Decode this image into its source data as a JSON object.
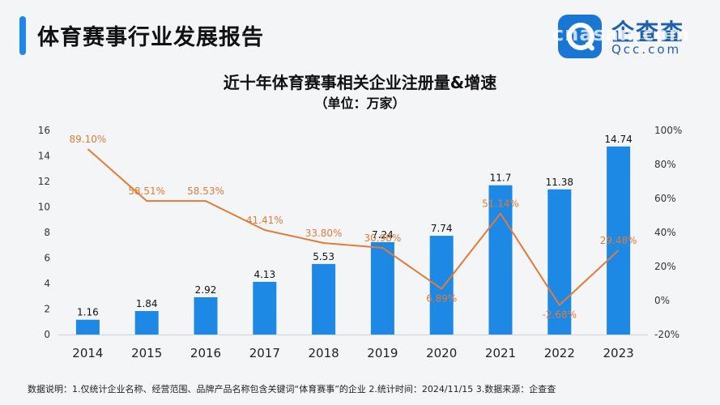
{
  "header": {
    "title": "体育赛事行业发展报告"
  },
  "logo": {
    "name": "企查查",
    "url": "Qcc.com",
    "icon": "magnifier-q-icon",
    "watermark": "cnasan.com"
  },
  "colors": {
    "accent": "#1e88e5",
    "bar": "#1e88e5",
    "line": "#e07b39",
    "growth_label": "#e07b39"
  },
  "chart_data": {
    "type": "bar",
    "title": "近十年体育赛事相关企业注册量&增速",
    "subtitle": "（单位：万家）",
    "categories": [
      "2014",
      "2015",
      "2016",
      "2017",
      "2018",
      "2019",
      "2020",
      "2021",
      "2022",
      "2023"
    ],
    "series": [
      {
        "type": "bar",
        "axis": "left",
        "values": [
          1.16,
          1.84,
          2.92,
          4.13,
          5.53,
          7.24,
          7.74,
          11.7,
          11.38,
          14.74
        ],
        "labels": [
          "1.16",
          "1.84",
          "2.92",
          "4.13",
          "5.53",
          "7.24",
          "7.74",
          "11.7",
          "11.38",
          "14.74"
        ]
      },
      {
        "type": "line",
        "axis": "right",
        "values": [
          89.1,
          58.51,
          58.53,
          41.41,
          33.8,
          30.98,
          6.89,
          51.14,
          -2.68,
          29.48
        ],
        "labels": [
          "89.10%",
          "58.51%",
          "58.53%",
          "41.41%",
          "33.80%",
          "30.98%",
          "6.89%",
          "51.14%",
          "-2.68%",
          "29.48%"
        ]
      }
    ],
    "y_left": {
      "range": [
        0,
        16
      ],
      "ticks": [
        0,
        2,
        4,
        6,
        8,
        10,
        12,
        14,
        16
      ],
      "tick_labels": [
        "0",
        "2",
        "4",
        "6",
        "8",
        "10",
        "12",
        "14",
        "16"
      ]
    },
    "y_right": {
      "range": [
        -20,
        100
      ],
      "ticks": [
        -20,
        0,
        20,
        40,
        60,
        80,
        100
      ],
      "tick_labels": [
        "-20%",
        "0%",
        "20%",
        "40%",
        "60%",
        "80%",
        "100%"
      ]
    },
    "grid": false,
    "legend": "none"
  },
  "footnote": "数据说明：1.仅统计企业名称、经营范围、品牌产品名称包含关键词“体育赛事”的企业  2.统计时间：2024/11/15  3.数据来源：企查查"
}
